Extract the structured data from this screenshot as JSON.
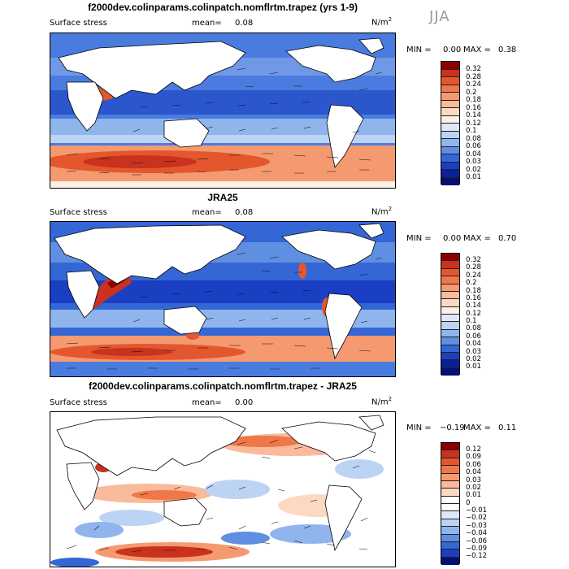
{
  "season": "JJA",
  "panels": [
    {
      "title": "f2000dev.colinparams.colinpatch.nomflrtm.trapez (yrs 1-9)",
      "variable": "Surface stress",
      "mean_label": "mean=",
      "mean_value": "0.08",
      "units": "N/m",
      "units_sup": "2",
      "min_label": "MIN =",
      "min_value": "0.00",
      "max_label": "MAX =",
      "max_value": "0.38",
      "colorbar": {
        "levels": [
          "0.32",
          "0.28",
          "0.24",
          "0.2",
          "0.18",
          "0.16",
          "0.14",
          "0.12",
          "0.1",
          "0.08",
          "0.06",
          "0.04",
          "0.03",
          "0.02",
          "0.01"
        ],
        "colors": [
          "#8b0000",
          "#c8321e",
          "#e4572e",
          "#f07748",
          "#f59a70",
          "#f9bb9b",
          "#fcd9c3",
          "#fdf0e6",
          "#dde9f8",
          "#bcd3f3",
          "#8fb5ec",
          "#5f8fe0",
          "#3566d6",
          "#1a3fc2",
          "#0b1f9a",
          "#061070"
        ]
      }
    },
    {
      "title": "JRA25",
      "variable": "Surface stress",
      "mean_label": "mean=",
      "mean_value": "0.08",
      "units": "N/m",
      "units_sup": "2",
      "min_label": "MIN =",
      "min_value": "0.00",
      "max_label": "MAX =",
      "max_value": "0.70",
      "colorbar": {
        "levels": [
          "0.32",
          "0.28",
          "0.24",
          "0.2",
          "0.18",
          "0.16",
          "0.14",
          "0.12",
          "0.1",
          "0.08",
          "0.06",
          "0.04",
          "0.03",
          "0.02",
          "0.01"
        ],
        "colors": [
          "#8b0000",
          "#c8321e",
          "#e4572e",
          "#f07748",
          "#f59a70",
          "#f9bb9b",
          "#fcd9c3",
          "#fdf0e6",
          "#dde9f8",
          "#bcd3f3",
          "#8fb5ec",
          "#5f8fe0",
          "#3566d6",
          "#1a3fc2",
          "#0b1f9a",
          "#061070"
        ]
      }
    },
    {
      "title": "f2000dev.colinparams.colinpatch.nomflrtm.trapez - JRA25",
      "variable": "Surface stress",
      "mean_label": "mean=",
      "mean_value": "0.00",
      "units": "N/m",
      "units_sup": "2",
      "min_label": "MIN =",
      "min_value": "−0.19",
      "max_label": "MAX =",
      "max_value": "0.11",
      "colorbar": {
        "levels": [
          "0.12",
          "0.09",
          "0.06",
          "0.04",
          "0.03",
          "0.02",
          "0.01",
          "0",
          "−0.01",
          "−0.02",
          "−0.03",
          "−0.04",
          "−0.06",
          "−0.09",
          "−0.12"
        ],
        "colors": [
          "#8b0000",
          "#c8321e",
          "#e4572e",
          "#f07748",
          "#f59a70",
          "#f9bb9b",
          "#fcd9c3",
          "#ffffff",
          "#ffffff",
          "#dde9f8",
          "#bcd3f3",
          "#8fb5ec",
          "#5f8fe0",
          "#3566d6",
          "#1a3fc2",
          "#061070"
        ]
      }
    }
  ]
}
